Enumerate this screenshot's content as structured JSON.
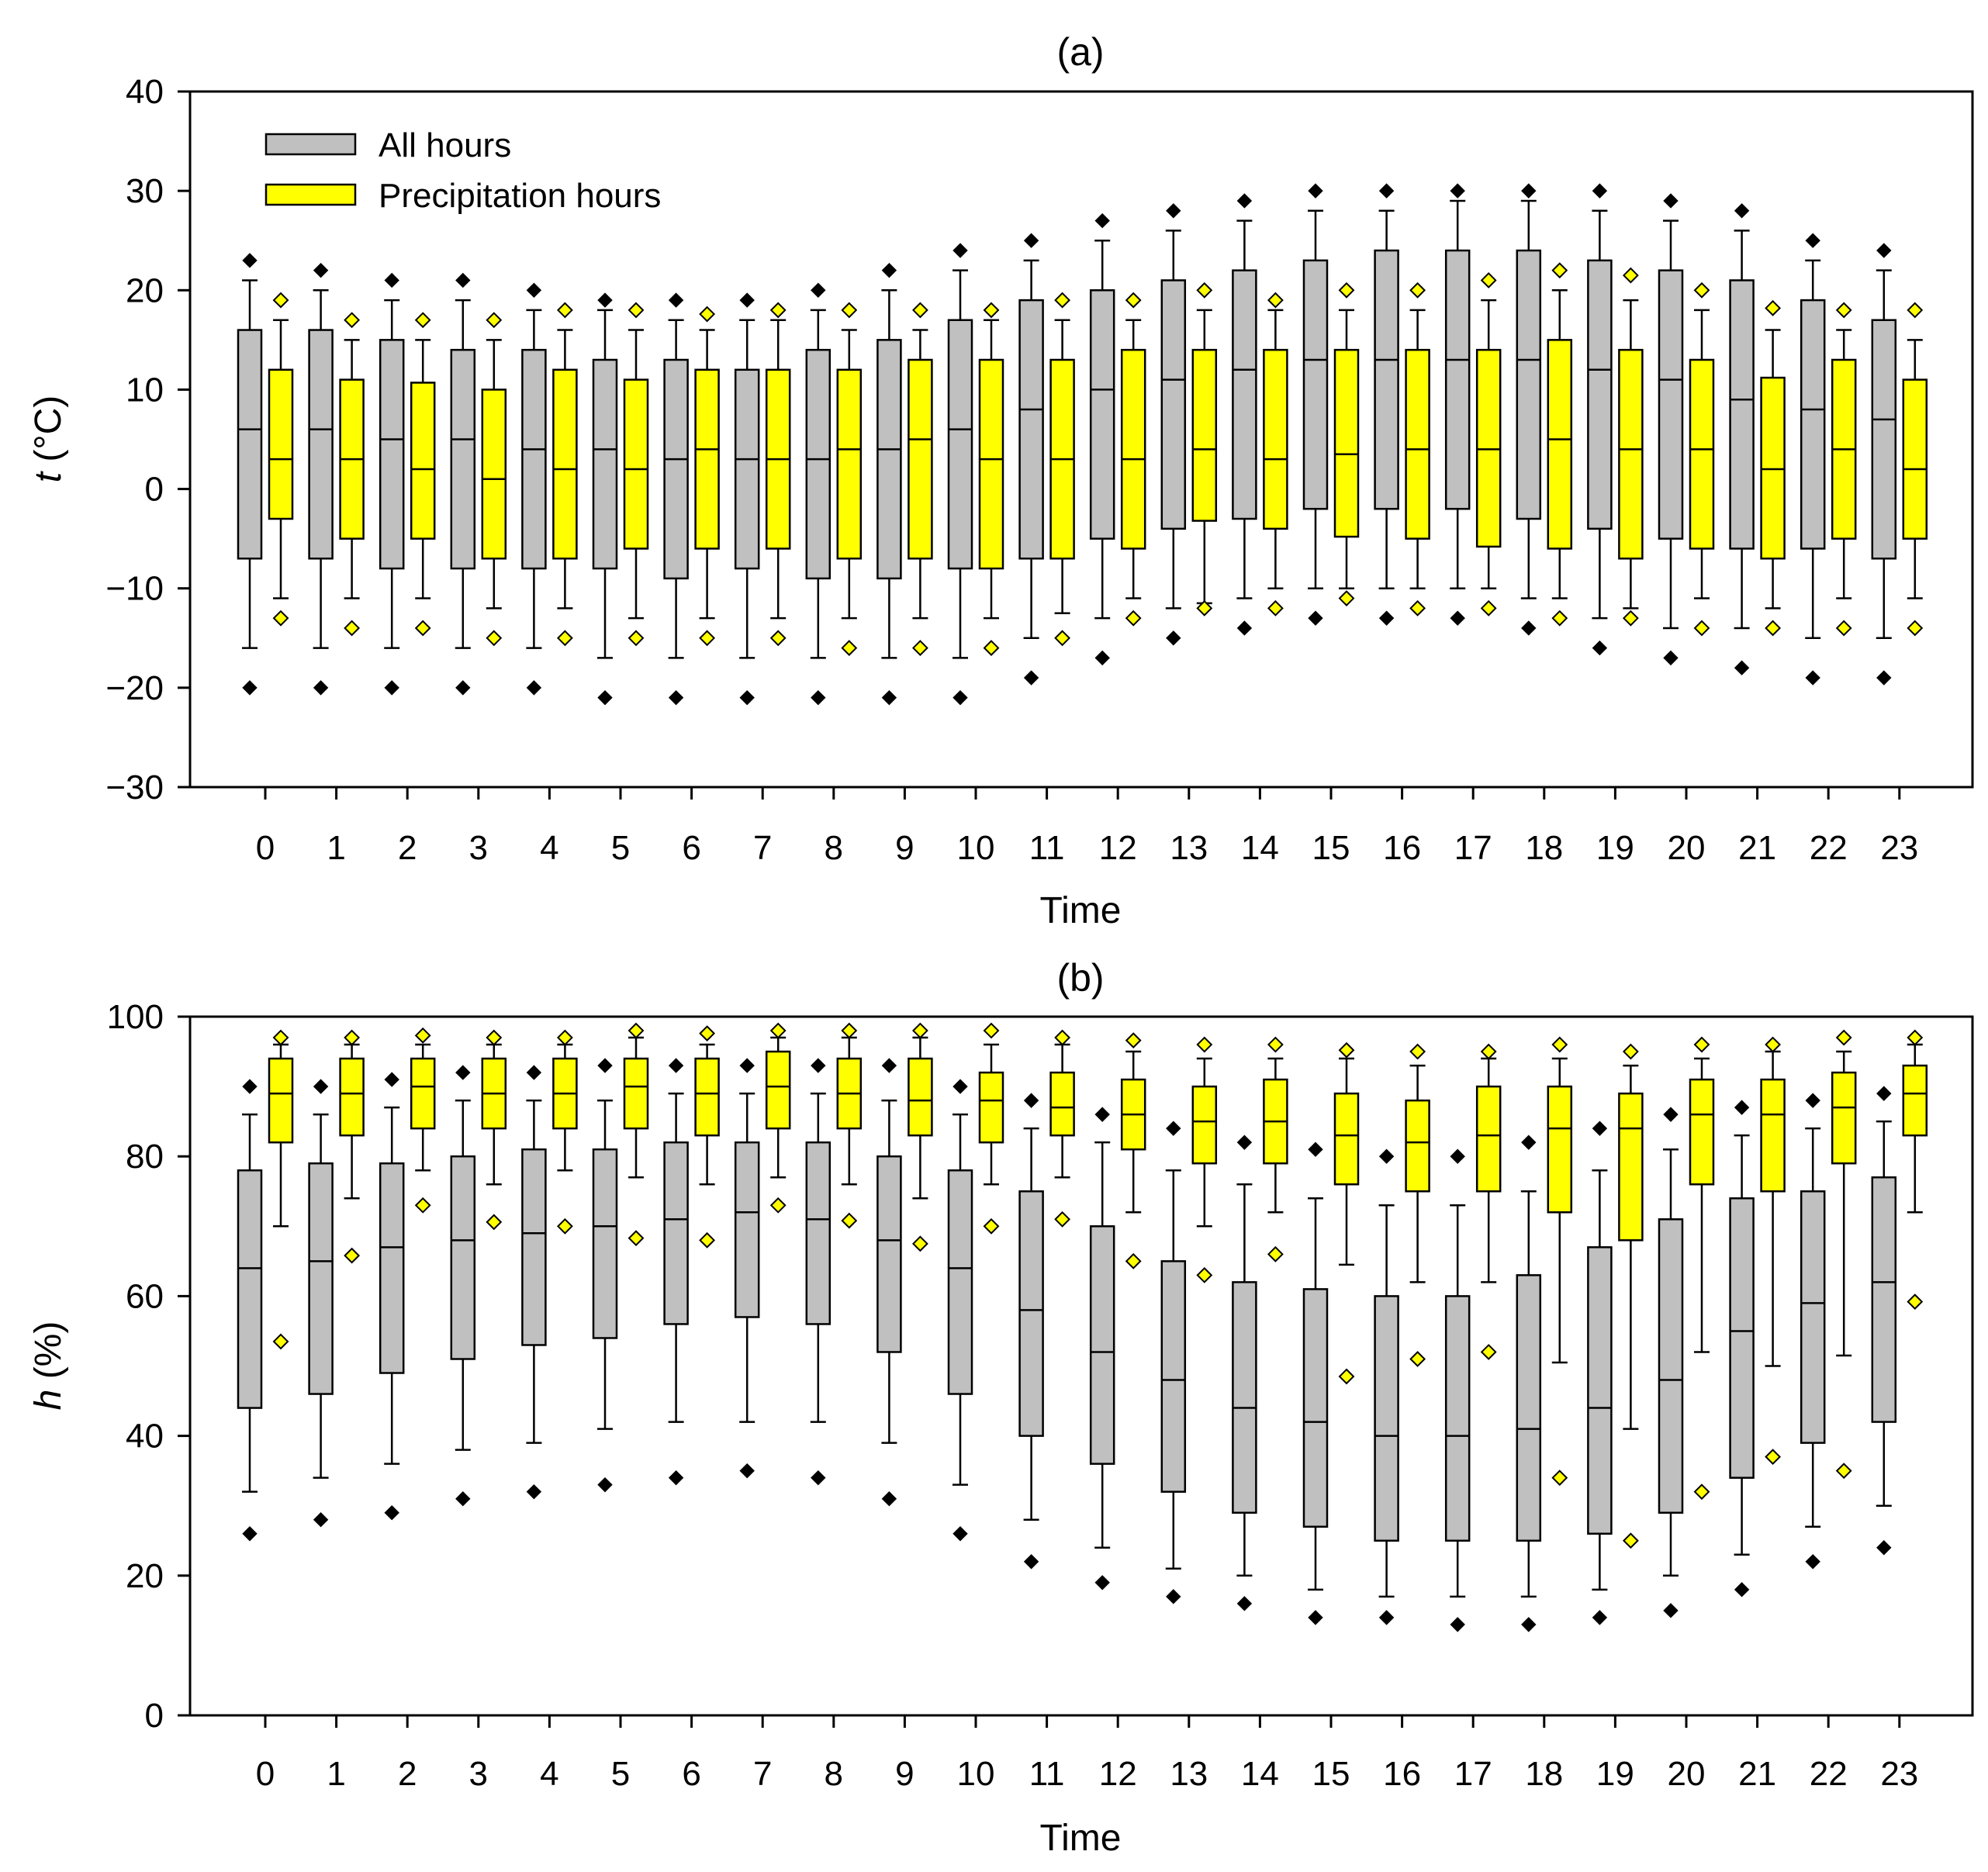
{
  "chart_data": [
    {
      "id": "a",
      "type": "box",
      "title": "(a)",
      "xlabel": "Time",
      "ylabel_italic": "t",
      "ylabel_rest": " (°C)",
      "ylim": [
        -30,
        40
      ],
      "yticks": [
        -30,
        -20,
        -10,
        0,
        10,
        20,
        30,
        40
      ],
      "ytick_labels": [
        "−30",
        "−20",
        "−10",
        "0",
        "10",
        "20",
        "30",
        "40"
      ],
      "categories": [
        "0",
        "1",
        "2",
        "3",
        "4",
        "5",
        "6",
        "7",
        "8",
        "9",
        "10",
        "11",
        "12",
        "13",
        "14",
        "15",
        "16",
        "17",
        "18",
        "19",
        "20",
        "21",
        "22",
        "23"
      ],
      "legend": {
        "position": "top-left",
        "entries": [
          "All hours",
          "Precipitation hours"
        ]
      },
      "series": [
        {
          "name": "All hours",
          "color": "#c0c0c0",
          "outlier_color": "#000000",
          "whisker_low": [
            -16,
            -16,
            -16,
            -16,
            -16,
            -17,
            -17,
            -17,
            -17,
            -17,
            -17,
            -15,
            -13,
            -12,
            -11,
            -10,
            -10,
            -10,
            -11,
            -13,
            -14,
            -14,
            -15,
            -15
          ],
          "q1": [
            -7,
            -7,
            -8,
            -8,
            -8,
            -8,
            -9,
            -8,
            -9,
            -9,
            -8,
            -7,
            -5,
            -4,
            -3,
            -2,
            -2,
            -2,
            -3,
            -4,
            -5,
            -6,
            -6,
            -7
          ],
          "median": [
            6,
            6,
            5,
            5,
            4,
            4,
            3,
            3,
            3,
            4,
            6,
            8,
            10,
            11,
            12,
            13,
            13,
            13,
            13,
            12,
            11,
            9,
            8,
            7
          ],
          "q3": [
            16,
            16,
            15,
            14,
            14,
            13,
            13,
            12,
            14,
            15,
            17,
            19,
            20,
            21,
            22,
            23,
            24,
            24,
            24,
            23,
            22,
            21,
            19,
            17
          ],
          "whisker_high": [
            21,
            20,
            19,
            19,
            18,
            18,
            17,
            17,
            18,
            20,
            22,
            23,
            25,
            26,
            27,
            28,
            28,
            29,
            29,
            28,
            27,
            26,
            23,
            22
          ],
          "outlier_high": [
            23,
            22,
            21,
            21,
            20,
            19,
            19,
            19,
            20,
            22,
            24,
            25,
            27,
            28,
            29,
            30,
            30,
            30,
            30,
            30,
            29,
            28,
            25,
            24
          ],
          "outlier_low": [
            -20,
            -20,
            -20,
            -20,
            -20,
            -21,
            -21,
            -21,
            -21,
            -21,
            -21,
            -19,
            -17,
            -15,
            -14,
            -13,
            -13,
            -13,
            -14,
            -16,
            -17,
            -18,
            -19,
            -19
          ]
        },
        {
          "name": "Precipitation hours",
          "color": "#ffff00",
          "outlier_color": "#ffff00",
          "whisker_low": [
            -11,
            -11,
            -11,
            -12,
            -12,
            -13,
            -13,
            -13,
            -13,
            -13,
            -13,
            -12.5,
            -11,
            -11.5,
            -10,
            -10,
            -10,
            -10,
            -11,
            -12,
            -11,
            -12,
            -11,
            -11
          ],
          "q1": [
            -3,
            -5,
            -5,
            -7,
            -7,
            -6,
            -6,
            -6,
            -7,
            -7,
            -8,
            -7,
            -6,
            -3.2,
            -4,
            -4.8,
            -5,
            -5.8,
            -6,
            -7,
            -6,
            -7,
            -5,
            -5
          ],
          "median": [
            3,
            3,
            2,
            1,
            2,
            2,
            4,
            3,
            4,
            5,
            3,
            3,
            3,
            4,
            3,
            3.5,
            4,
            4,
            5,
            4,
            4,
            2,
            4,
            2
          ],
          "q3": [
            12,
            11,
            10.7,
            10,
            12,
            11,
            12,
            12,
            12,
            13,
            13,
            13,
            14,
            14,
            14,
            14,
            14,
            14,
            15,
            14,
            13,
            11.2,
            13,
            11
          ],
          "whisker_high": [
            17,
            15,
            15,
            15,
            16,
            16,
            16,
            17,
            16,
            16,
            17,
            17,
            17,
            18,
            18,
            18,
            18,
            19,
            20,
            19,
            18,
            16,
            16,
            15
          ],
          "outlier_high": [
            19,
            17,
            17,
            17,
            18,
            18,
            17.6,
            18,
            18,
            18,
            18,
            19,
            19,
            20,
            19,
            20,
            20,
            21,
            22,
            21.5,
            20,
            18.2,
            18,
            18
          ],
          "outlier_low": [
            -13,
            -14,
            -14,
            -15,
            -15,
            -15,
            -15,
            -15,
            -16,
            -16,
            -16,
            -15,
            -13,
            -12,
            -12,
            -11,
            -12,
            -12,
            -13,
            -13,
            -14,
            -14,
            -14,
            -14
          ]
        }
      ]
    },
    {
      "id": "b",
      "type": "box",
      "title": "(b)",
      "xlabel": "Time",
      "ylabel_italic": "h",
      "ylabel_rest": " (%)",
      "ylim": [
        0,
        100
      ],
      "yticks": [
        0,
        20,
        40,
        60,
        80,
        100
      ],
      "ytick_labels": [
        "0",
        "20",
        "40",
        "60",
        "80",
        "100"
      ],
      "categories": [
        "0",
        "1",
        "2",
        "3",
        "4",
        "5",
        "6",
        "7",
        "8",
        "9",
        "10",
        "11",
        "12",
        "13",
        "14",
        "15",
        "16",
        "17",
        "18",
        "19",
        "20",
        "21",
        "22",
        "23"
      ],
      "series": [
        {
          "name": "All hours",
          "color": "#c0c0c0",
          "outlier_color": "#000000",
          "whisker_low": [
            32,
            34,
            36,
            38,
            39,
            41,
            42,
            42,
            42,
            39,
            33,
            28,
            24,
            21,
            20,
            18,
            17,
            17,
            17,
            18,
            20,
            23,
            27,
            30
          ],
          "q1": [
            44,
            46,
            49,
            51,
            53,
            54,
            56,
            57,
            56,
            52,
            46,
            40,
            36,
            32,
            29,
            27,
            25,
            25,
            25,
            26,
            29,
            34,
            39,
            42
          ],
          "median": [
            64,
            65,
            67,
            68,
            69,
            70,
            71,
            72,
            71,
            68,
            64,
            58,
            52,
            48,
            44,
            42,
            40,
            40,
            41,
            44,
            48,
            55,
            59,
            62
          ],
          "q3": [
            78,
            79,
            79,
            80,
            81,
            81,
            82,
            82,
            82,
            80,
            78,
            75,
            70,
            65,
            62,
            61,
            60,
            60,
            63,
            67,
            71,
            74,
            75,
            77
          ],
          "whisker_high": [
            86,
            86,
            87,
            88,
            88,
            88,
            89,
            89,
            89,
            88,
            86,
            84,
            82,
            78,
            76,
            74,
            73,
            73,
            75,
            78,
            81,
            83,
            84,
            85
          ],
          "outlier_high": [
            90,
            90,
            91,
            92,
            92,
            93,
            93,
            93,
            93,
            93,
            90,
            88,
            86,
            84,
            82,
            81,
            80,
            80,
            82,
            84,
            86,
            87,
            88,
            89
          ],
          "outlier_low": [
            26,
            28,
            29,
            31,
            32,
            33,
            34,
            35,
            34,
            31,
            26,
            22,
            19,
            17,
            16,
            14,
            14,
            13,
            13,
            14,
            15,
            18,
            22,
            24
          ]
        },
        {
          "name": "Precipitation hours",
          "color": "#ffff00",
          "outlier_color": "#ffff00",
          "whisker_low": [
            70,
            74,
            78,
            76,
            78,
            77,
            76,
            77,
            76,
            74,
            76,
            77,
            72,
            70,
            72,
            64.5,
            62,
            62,
            50.5,
            41,
            52,
            50,
            51.5,
            72
          ],
          "q1": [
            82,
            83,
            84,
            84,
            84,
            84,
            83,
            84,
            84,
            83,
            82,
            83,
            81,
            79,
            79,
            76,
            75,
            75,
            72,
            68,
            76,
            75,
            79,
            83
          ],
          "median": [
            89,
            89,
            90,
            89,
            89,
            90,
            89,
            90,
            89,
            88,
            88,
            87,
            86,
            85,
            85,
            83,
            82,
            83,
            84,
            84,
            86,
            86,
            87,
            89
          ],
          "q3": [
            94,
            94,
            94,
            94,
            94,
            94,
            94,
            95,
            94,
            94,
            92,
            92,
            91,
            90,
            91,
            89,
            88,
            90,
            90,
            89,
            91,
            91,
            92,
            93
          ],
          "whisker_high": [
            96,
            96,
            96,
            96,
            96,
            97,
            96,
            97,
            97,
            97,
            96,
            96,
            95,
            94,
            94,
            94,
            93,
            94,
            94,
            93,
            94,
            95,
            95,
            96
          ],
          "outlier_high": [
            97,
            97,
            97.3,
            97,
            97,
            98,
            97.6,
            98,
            98,
            98,
            98,
            97,
            96.6,
            96,
            96,
            95.2,
            95,
            95,
            96,
            95,
            96,
            96,
            97,
            97
          ],
          "outlier_low": [
            53.5,
            65.8,
            73,
            70.6,
            70,
            68.3,
            68,
            73,
            70.8,
            67.5,
            70,
            71,
            65,
            63,
            66,
            48.5,
            51,
            52,
            34,
            25,
            32,
            37,
            35,
            59.2
          ]
        }
      ]
    }
  ]
}
